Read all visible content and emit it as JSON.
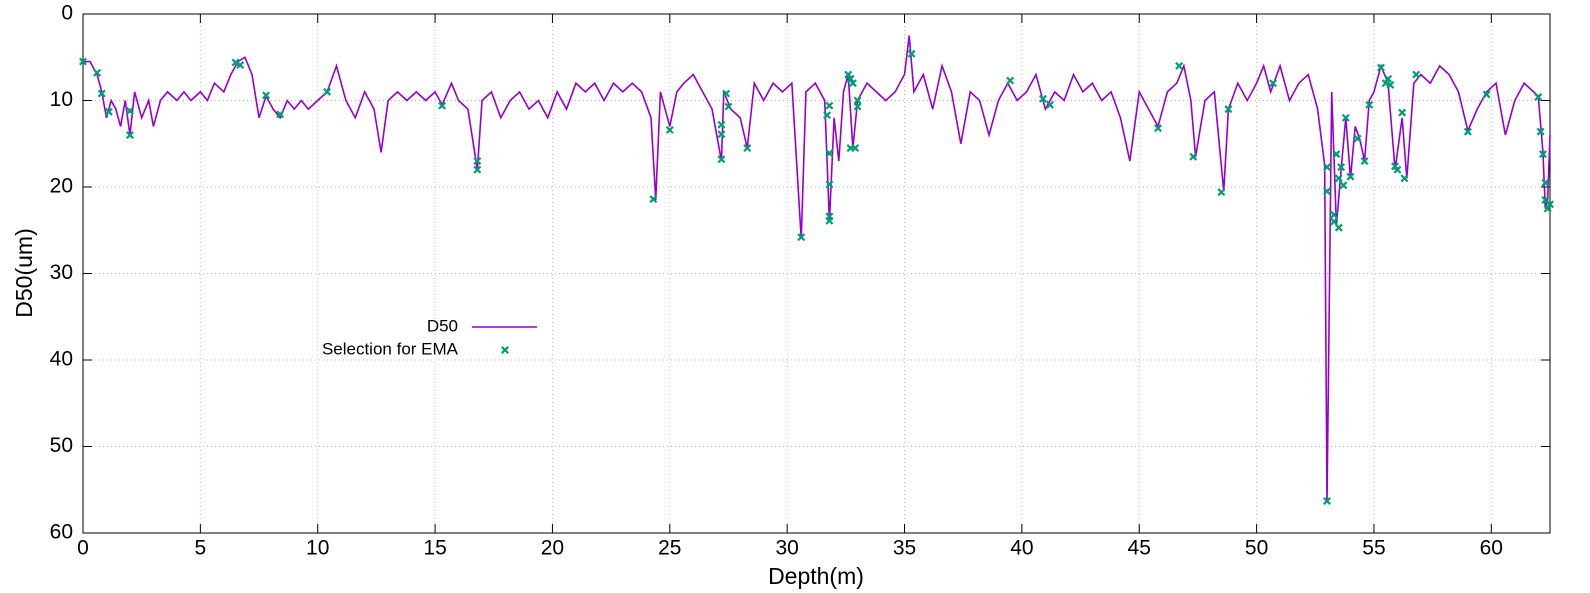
{
  "chart_data": {
    "type": "line",
    "xlabel": "Depth(m)",
    "ylabel": "D50(um)",
    "xlim": [
      0,
      62.5
    ],
    "ylim": [
      60,
      0
    ],
    "xticks": [
      0,
      5,
      10,
      15,
      20,
      25,
      30,
      35,
      40,
      45,
      50,
      55,
      60
    ],
    "yticks": [
      0,
      10,
      20,
      30,
      40,
      50,
      60
    ],
    "grid": true,
    "series": [
      {
        "name": "D50",
        "type": "line",
        "color": "#9400d3",
        "x": [
          0,
          0.3,
          0.6,
          0.8,
          1.0,
          1.2,
          1.4,
          1.6,
          1.8,
          2.0,
          2.2,
          2.5,
          2.8,
          3.0,
          3.3,
          3.6,
          4.0,
          4.3,
          4.6,
          5.0,
          5.3,
          5.6,
          6.0,
          6.3,
          6.6,
          6.9,
          7.2,
          7.5,
          7.8,
          8.1,
          8.4,
          8.7,
          9.0,
          9.3,
          9.6,
          10.0,
          10.4,
          10.8,
          11.2,
          11.6,
          12.0,
          12.4,
          12.7,
          13.0,
          13.4,
          13.8,
          14.2,
          14.6,
          15.0,
          15.3,
          15.7,
          16.0,
          16.4,
          16.8,
          17.0,
          17.4,
          17.8,
          18.2,
          18.6,
          19.0,
          19.4,
          19.8,
          20.2,
          20.6,
          21.0,
          21.4,
          21.8,
          22.2,
          22.6,
          23.0,
          23.4,
          23.8,
          24.2,
          24.4,
          24.6,
          25.0,
          25.3,
          25.6,
          26.0,
          26.4,
          26.8,
          27.2,
          27.3,
          27.6,
          28.0,
          28.3,
          28.6,
          29.0,
          29.4,
          29.8,
          30.2,
          30.6,
          30.8,
          31.2,
          31.6,
          31.8,
          32.0,
          32.2,
          32.4,
          32.6,
          32.8,
          33.0,
          33.4,
          33.8,
          34.2,
          34.6,
          35.0,
          35.2,
          35.4,
          35.8,
          36.2,
          36.6,
          37.0,
          37.4,
          37.8,
          38.2,
          38.6,
          39.0,
          39.4,
          39.8,
          40.2,
          40.6,
          41.0,
          41.4,
          41.8,
          42.2,
          42.6,
          43.0,
          43.4,
          43.8,
          44.2,
          44.6,
          45.0,
          45.4,
          45.8,
          46.2,
          46.6,
          46.9,
          47.2,
          47.4,
          47.8,
          48.2,
          48.6,
          48.8,
          49.2,
          49.6,
          50.0,
          50.3,
          50.6,
          51.0,
          51.4,
          51.8,
          52.2,
          52.6,
          52.9,
          53.0,
          53.2,
          53.4,
          53.6,
          53.8,
          54.0,
          54.2,
          54.4,
          54.6,
          54.8,
          55.0,
          55.3,
          55.6,
          55.9,
          56.2,
          56.4,
          56.7,
          57.0,
          57.4,
          57.8,
          58.2,
          58.6,
          59.0,
          59.4,
          59.8,
          60.2,
          60.6,
          61.0,
          61.4,
          61.8,
          62.0,
          62.2,
          62.3,
          62.4,
          62.5
        ],
        "values": [
          5.5,
          5.5,
          7,
          9,
          12,
          10,
          11,
          13,
          10,
          14,
          9,
          12,
          10,
          13,
          10,
          9,
          10,
          9,
          10,
          9,
          10,
          8,
          9,
          7,
          5.5,
          5,
          7,
          12,
          9.5,
          11,
          12,
          10,
          11,
          10,
          11,
          10,
          9,
          6,
          10,
          12,
          9,
          11,
          16,
          10,
          9,
          10,
          9,
          10,
          9,
          10.5,
          8,
          10,
          11,
          18,
          10,
          9,
          12,
          10,
          9,
          11,
          10,
          12,
          9,
          11,
          8,
          9,
          8,
          10,
          8,
          9,
          8,
          9,
          12,
          21.5,
          9,
          13,
          9,
          8,
          7,
          9,
          11,
          17,
          9,
          11,
          12,
          15.5,
          8,
          10,
          8,
          9,
          8,
          26,
          9,
          8,
          10,
          24,
          12,
          17,
          9,
          7,
          15.5,
          10,
          8,
          9,
          10,
          9,
          7,
          2.5,
          9,
          7,
          11,
          6,
          9,
          15,
          9,
          10,
          14,
          10,
          8,
          10,
          9,
          7,
          11,
          9,
          10,
          7,
          9,
          8,
          10,
          9,
          12,
          17,
          9,
          11,
          13,
          9,
          8,
          6,
          10,
          16.5,
          10,
          9,
          20.5,
          11,
          8,
          10,
          8,
          6,
          9,
          6,
          10,
          8,
          7,
          11,
          17.5,
          56.5,
          9,
          24.5,
          18,
          12,
          19,
          13,
          14.5,
          17,
          10,
          9,
          6,
          8,
          18,
          12,
          19,
          8,
          7,
          8,
          6,
          7,
          9,
          13.5,
          11,
          9,
          8,
          14,
          10,
          8,
          9,
          9.5,
          16,
          22.5,
          21.5,
          14
        ]
      },
      {
        "name": "Selection for EMA",
        "type": "scatter",
        "color": "#009e73",
        "x": [
          0,
          0.6,
          0.8,
          1.1,
          2.0,
          2.0,
          6.5,
          6.7,
          7.8,
          8.4,
          10.4,
          15.3,
          16.8,
          16.8,
          24.3,
          25.0,
          27.2,
          27.2,
          27.2,
          27.4,
          27.5,
          28.3,
          30.6,
          31.7,
          31.8,
          31.8,
          31.8,
          31.8,
          31.8,
          32.6,
          32.7,
          32.8,
          32.7,
          32.9,
          33.0,
          33.0,
          35.3,
          39.5,
          40.9,
          41.2,
          45.8,
          46.7,
          47.3,
          48.5,
          48.8,
          50.7,
          53.0,
          53.0,
          53.0,
          53.3,
          53.3,
          53.5,
          53.4,
          53.5,
          53.6,
          53.7,
          53.8,
          54.0,
          54.3,
          54.6,
          54.8,
          55.3,
          55.5,
          55.6,
          55.7,
          55.9,
          56.0,
          56.2,
          56.3,
          56.8,
          59.0,
          59.8,
          62.0,
          62.1,
          62.2,
          62.3,
          62.3,
          62.4,
          62.5
        ],
        "values": [
          5.5,
          6.8,
          9.2,
          11.3,
          11.2,
          14,
          5.6,
          5.9,
          9.4,
          11.6,
          9,
          10.6,
          17,
          18,
          21.4,
          13.4,
          12.8,
          13.9,
          16.8,
          9.2,
          10.7,
          15.5,
          25.8,
          11.7,
          10.6,
          16.1,
          19.7,
          23.4,
          23.9,
          7,
          7.5,
          8,
          15.5,
          15.5,
          10,
          10.7,
          4.6,
          7.7,
          9.8,
          10.5,
          13.2,
          6,
          16.5,
          20.6,
          11,
          8,
          17.7,
          20.5,
          56.3,
          23.2,
          24,
          24.7,
          16.2,
          19,
          17.7,
          19.8,
          12,
          18.8,
          14.4,
          17,
          10.5,
          6.2,
          8,
          7.5,
          8.2,
          17.6,
          18,
          11.4,
          19,
          7,
          13.6,
          9.3,
          9.6,
          13.6,
          16.2,
          19.5,
          21.5,
          22.5,
          22
        ]
      }
    ]
  }
}
